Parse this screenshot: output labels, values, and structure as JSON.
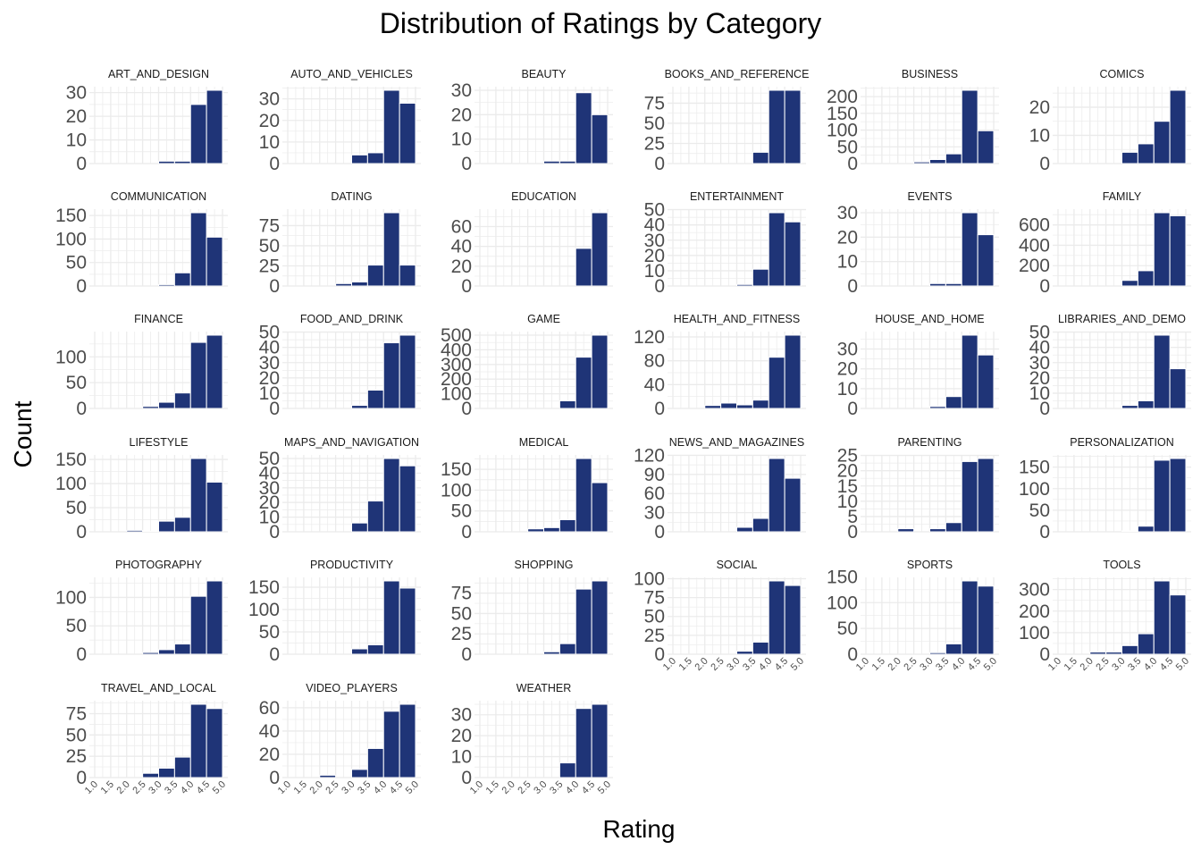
{
  "chart_data": {
    "type": "bar",
    "title": "Distribution of Ratings by Category",
    "xlabel": "Rating",
    "ylabel": "Count",
    "facet_layout": "wrap, 6 columns, shared x axis, free y axis",
    "x_ticks": [
      "1.0",
      "1.5",
      "2.0",
      "2.5",
      "3.0",
      "3.5",
      "4.0",
      "4.5",
      "5.0"
    ],
    "xlim": [
      1.0,
      5.0
    ],
    "bins": [
      1.0,
      1.5,
      2.0,
      2.5,
      3.0,
      3.5,
      4.0,
      4.5
    ],
    "bar_color": "#1f3477",
    "grid": true,
    "panels": [
      {
        "title": "ART_AND_DESIGN",
        "yticks": [
          0,
          10,
          20,
          30
        ],
        "ylim": [
          0,
          31
        ],
        "values": [
          0,
          0,
          0,
          0,
          1,
          1,
          25,
          31
        ]
      },
      {
        "title": "AUTO_AND_VEHICLES",
        "yticks": [
          0,
          10,
          20,
          30
        ],
        "ylim": [
          0,
          34
        ],
        "values": [
          0,
          0,
          0,
          0,
          4,
          5,
          34,
          28
        ]
      },
      {
        "title": "BEAUTY",
        "yticks": [
          0,
          10,
          20,
          30
        ],
        "ylim": [
          0,
          30
        ],
        "values": [
          0,
          0,
          0,
          0,
          1,
          1,
          29,
          20
        ]
      },
      {
        "title": "BOOKS_AND_REFERENCE",
        "yticks": [
          0,
          25,
          50,
          75
        ],
        "ylim": [
          0,
          91
        ],
        "values": [
          0,
          0,
          0,
          0,
          0,
          14,
          91,
          91
        ]
      },
      {
        "title": "BUSINESS",
        "yticks": [
          0,
          50,
          100,
          150,
          200
        ],
        "ylim": [
          0,
          219
        ],
        "values": [
          0,
          0,
          0,
          5,
          12,
          29,
          219,
          98
        ]
      },
      {
        "title": "COMICS",
        "yticks": [
          0,
          10,
          20
        ],
        "ylim": [
          0,
          26
        ],
        "values": [
          0,
          0,
          0,
          0,
          4,
          7,
          15,
          26
        ]
      },
      {
        "title": "COMMUNICATION",
        "yticks": [
          0,
          50,
          100,
          150
        ],
        "ylim": [
          0,
          156
        ],
        "values": [
          0,
          0,
          0,
          0,
          3,
          28,
          156,
          104
        ]
      },
      {
        "title": "DATING",
        "yticks": [
          0,
          25,
          50,
          75
        ],
        "ylim": [
          0,
          91
        ],
        "values": [
          0,
          0,
          0,
          3,
          5,
          26,
          91,
          26
        ]
      },
      {
        "title": "EDUCATION",
        "yticks": [
          0,
          20,
          40,
          60
        ],
        "ylim": [
          0,
          74
        ],
        "values": [
          0,
          0,
          0,
          0,
          0,
          0,
          38,
          74
        ]
      },
      {
        "title": "ENTERTAINMENT",
        "yticks": [
          0,
          10,
          20,
          30,
          40,
          50
        ],
        "ylim": [
          0,
          48
        ],
        "values": [
          0,
          0,
          0,
          0,
          1,
          11,
          48,
          42
        ]
      },
      {
        "title": "EVENTS",
        "yticks": [
          0,
          10,
          20,
          30
        ],
        "ylim": [
          0,
          30
        ],
        "values": [
          0,
          0,
          0,
          0,
          1,
          1,
          30,
          21
        ]
      },
      {
        "title": "FAMILY",
        "yticks": [
          0,
          200,
          400,
          600
        ],
        "ylim": [
          0,
          720
        ],
        "values": [
          0,
          0,
          0,
          0,
          55,
          150,
          720,
          690
        ]
      },
      {
        "title": "FINANCE",
        "yticks": [
          0,
          50,
          100
        ],
        "ylim": [
          0,
          142
        ],
        "values": [
          0,
          0,
          0,
          4,
          12,
          30,
          128,
          142
        ]
      },
      {
        "title": "FOOD_AND_DRINK",
        "yticks": [
          0,
          10,
          20,
          30,
          40,
          50
        ],
        "ylim": [
          0,
          48
        ],
        "values": [
          0,
          0,
          0,
          0,
          2,
          12,
          43,
          48
        ]
      },
      {
        "title": "GAME",
        "yticks": [
          0,
          100,
          200,
          300,
          400,
          500
        ],
        "ylim": [
          0,
          500
        ],
        "values": [
          0,
          0,
          0,
          0,
          0,
          52,
          350,
          500
        ]
      },
      {
        "title": "HEALTH_AND_FITNESS",
        "yticks": [
          0,
          40,
          80,
          120
        ],
        "ylim": [
          0,
          123
        ],
        "values": [
          0,
          0,
          5,
          9,
          6,
          14,
          86,
          123
        ]
      },
      {
        "title": "HOUSE_AND_HOME",
        "yticks": [
          0,
          10,
          20,
          30
        ],
        "ylim": [
          0,
          37
        ],
        "values": [
          0,
          0,
          0,
          0,
          1,
          6,
          37,
          27
        ]
      },
      {
        "title": "LIBRARIES_AND_DEMO",
        "yticks": [
          0,
          10,
          20,
          30,
          40,
          50
        ],
        "ylim": [
          0,
          48
        ],
        "values": [
          0,
          0,
          0,
          0,
          2,
          5,
          48,
          26
        ]
      },
      {
        "title": "LIFESTYLE",
        "yticks": [
          0,
          50,
          100,
          150
        ],
        "ylim": [
          0,
          152
        ],
        "values": [
          0,
          0,
          3,
          1,
          22,
          30,
          152,
          103
        ]
      },
      {
        "title": "MAPS_AND_NAVIGATION",
        "yticks": [
          0,
          10,
          20,
          30,
          40,
          50
        ],
        "ylim": [
          0,
          50
        ],
        "values": [
          0,
          0,
          0,
          0,
          6,
          21,
          50,
          45
        ]
      },
      {
        "title": "MEDICAL",
        "yticks": [
          0,
          50,
          100,
          150
        ],
        "ylim": [
          0,
          176
        ],
        "values": [
          0,
          0,
          0,
          7,
          10,
          29,
          176,
          118
        ]
      },
      {
        "title": "NEWS_AND_MAGAZINES",
        "yticks": [
          0,
          30,
          60,
          90,
          120
        ],
        "ylim": [
          0,
          115
        ],
        "values": [
          0,
          0,
          0,
          0,
          7,
          21,
          115,
          84
        ]
      },
      {
        "title": "PARENTING",
        "yticks": [
          0,
          5,
          10,
          15,
          20,
          25
        ],
        "ylim": [
          0,
          24
        ],
        "values": [
          0,
          0,
          1,
          0,
          1,
          3,
          23,
          24
        ]
      },
      {
        "title": "PERSONALIZATION",
        "yticks": [
          0,
          50,
          100,
          150
        ],
        "ylim": [
          0,
          170
        ],
        "values": [
          0,
          0,
          0,
          0,
          2,
          13,
          166,
          170
        ]
      },
      {
        "title": "PHOTOGRAPHY",
        "yticks": [
          0,
          50,
          100
        ],
        "ylim": [
          0,
          129
        ],
        "values": [
          0,
          0,
          0,
          3,
          8,
          18,
          102,
          129
        ]
      },
      {
        "title": "PRODUCTIVITY",
        "yticks": [
          0,
          50,
          100,
          150
        ],
        "ylim": [
          0,
          164
        ],
        "values": [
          0,
          0,
          0,
          0,
          12,
          21,
          164,
          148
        ]
      },
      {
        "title": "SHOPPING",
        "yticks": [
          0,
          25,
          50,
          75
        ],
        "ylim": [
          0,
          90
        ],
        "values": [
          0,
          0,
          0,
          0,
          3,
          13,
          80,
          90
        ]
      },
      {
        "title": "SOCIAL",
        "yticks": [
          0,
          25,
          50,
          75,
          100
        ],
        "ylim": [
          0,
          97
        ],
        "values": [
          0,
          0,
          0,
          0,
          4,
          16,
          97,
          91
        ]
      },
      {
        "title": "SPORTS",
        "yticks": [
          0,
          50,
          100,
          150
        ],
        "ylim": [
          0,
          142
        ],
        "values": [
          0,
          0,
          0,
          0,
          3,
          20,
          142,
          132
        ]
      },
      {
        "title": "TOOLS",
        "yticks": [
          0,
          100,
          200,
          300
        ],
        "ylim": [
          0,
          340
        ],
        "values": [
          0,
          0,
          10,
          10,
          40,
          95,
          340,
          275
        ]
      },
      {
        "title": "TRAVEL_AND_LOCAL",
        "yticks": [
          0,
          25,
          50,
          75
        ],
        "ylim": [
          0,
          86
        ],
        "values": [
          0,
          0,
          0,
          5,
          11,
          24,
          86,
          81
        ]
      },
      {
        "title": "VIDEO_PLAYERS",
        "yticks": [
          0,
          20,
          40,
          60
        ],
        "ylim": [
          0,
          63
        ],
        "values": [
          0,
          0,
          2,
          0,
          7,
          25,
          57,
          63
        ]
      },
      {
        "title": "WEATHER",
        "yticks": [
          0,
          10,
          20,
          30
        ],
        "ylim": [
          0,
          35
        ],
        "values": [
          0,
          0,
          0,
          0,
          0,
          7,
          33,
          35
        ]
      }
    ]
  }
}
